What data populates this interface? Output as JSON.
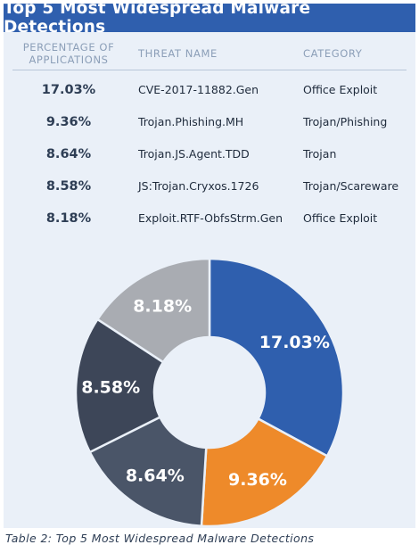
{
  "title": "Top 5 Most Widespread Malware Detections",
  "table": {
    "headers": {
      "percentage": "PERCENTAGE OF APPLICATIONS",
      "threat_name": "THREAT NAME",
      "category": "CATEGORY"
    },
    "rows": [
      {
        "percentage": "17.03%",
        "threat_name": "CVE-2017-11882.Gen",
        "category": "Office Exploit"
      },
      {
        "percentage": "9.36%",
        "threat_name": "Trojan.Phishing.MH",
        "category": "Trojan/Phishing"
      },
      {
        "percentage": "8.64%",
        "threat_name": "Trojan.JS.Agent.TDD",
        "category": "Trojan"
      },
      {
        "percentage": "8.58%",
        "threat_name": "JS:Trojan.Cryxos.1726",
        "category": "Trojan/Scareware"
      },
      {
        "percentage": "8.18%",
        "threat_name": "Exploit.RTF-ObfsStrm.Gen",
        "category": "Office Exploit"
      }
    ]
  },
  "chart_data": {
    "type": "pie",
    "title": "",
    "donut": true,
    "slices": [
      {
        "label": "17.03%",
        "value": 17.03,
        "color": "#2f5fae"
      },
      {
        "label": "9.36%",
        "value": 9.36,
        "color": "#ee8a2a"
      },
      {
        "label": "8.64%",
        "value": 8.64,
        "color": "#4a5568"
      },
      {
        "label": "8.58%",
        "value": 8.58,
        "color": "#3d4658"
      },
      {
        "label": "8.18%",
        "value": 8.18,
        "color": "#a9acb2"
      }
    ],
    "start_angle_deg": 0,
    "direction": "clockwise",
    "legend": "none"
  },
  "colors": {
    "title_background": "#2f5fae",
    "panel_background": "#eaf0f8",
    "header_text": "#8c9fb8"
  },
  "caption": "Table 2: Top 5 Most Widespread Malware Detections"
}
